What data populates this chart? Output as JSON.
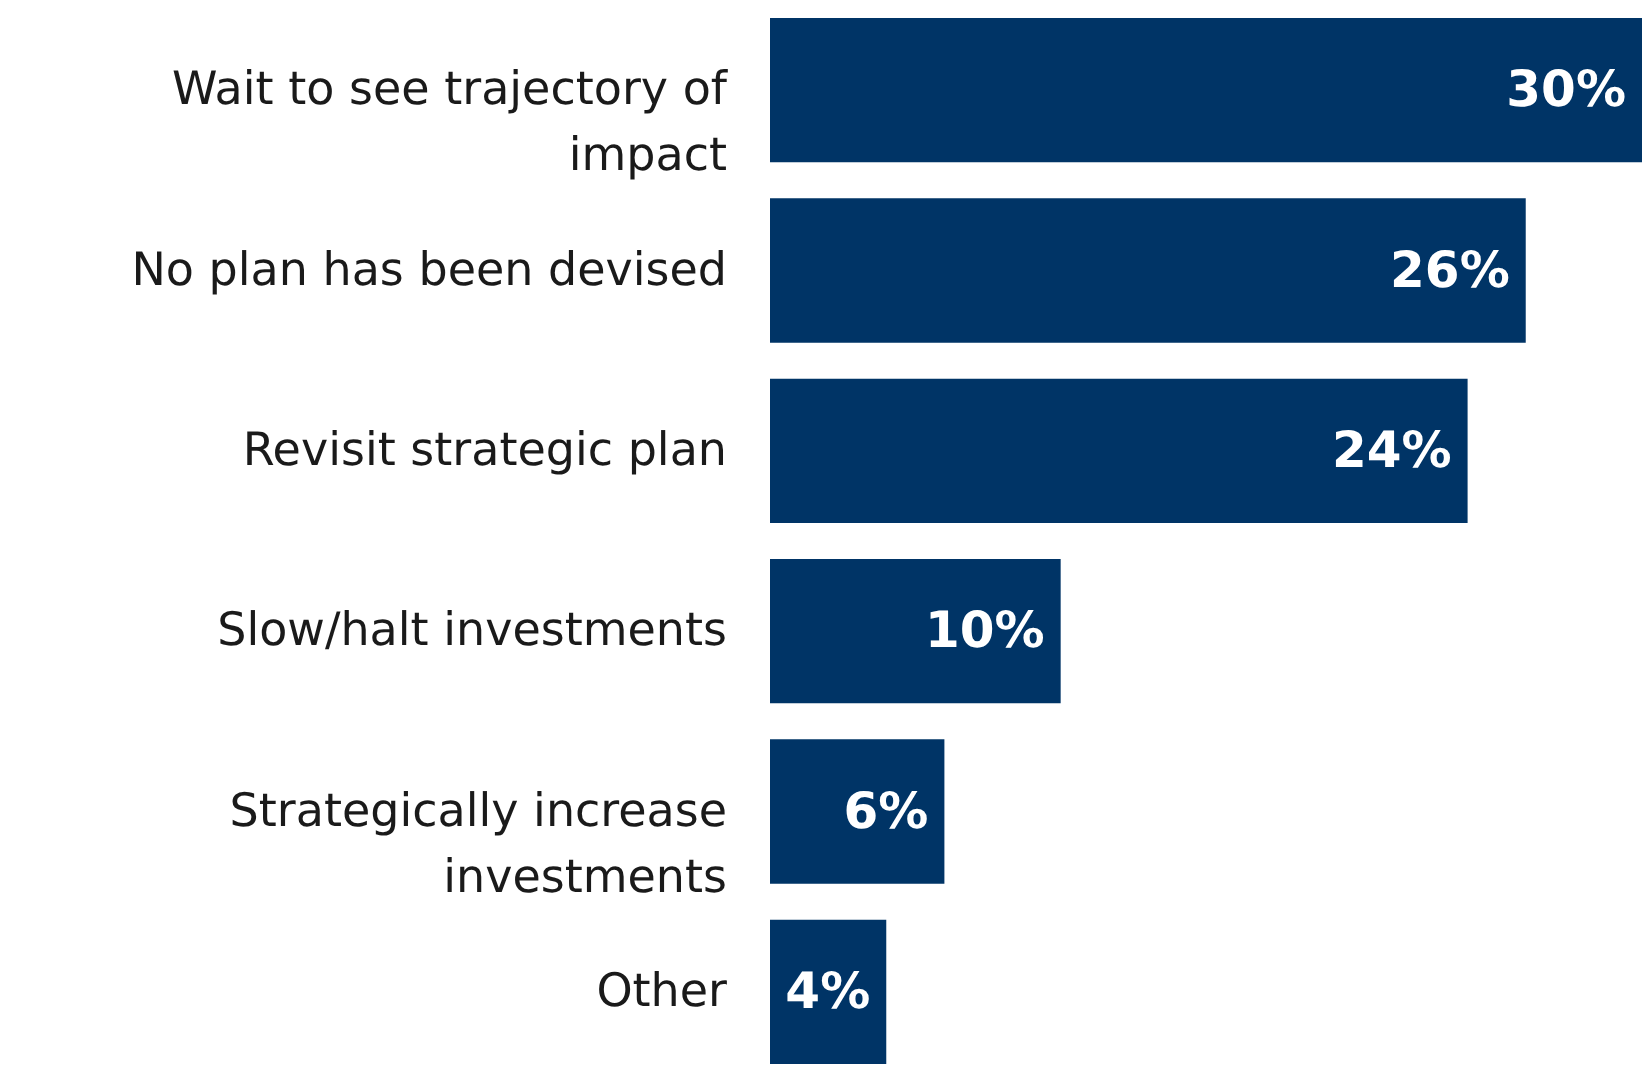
{
  "chart_data": {
    "type": "bar",
    "orientation": "horizontal",
    "categories": [
      "Wait to see trajectory of impact",
      "No plan has been devised",
      "Revisit strategic plan",
      "Slow/halt investments",
      "Strategically increase investments",
      "Other"
    ],
    "values": [
      30,
      26,
      24,
      10,
      6,
      4
    ],
    "value_labels": [
      "30%",
      "26%",
      "24%",
      "10%",
      "6%",
      "4%"
    ],
    "color": "#003466"
  }
}
